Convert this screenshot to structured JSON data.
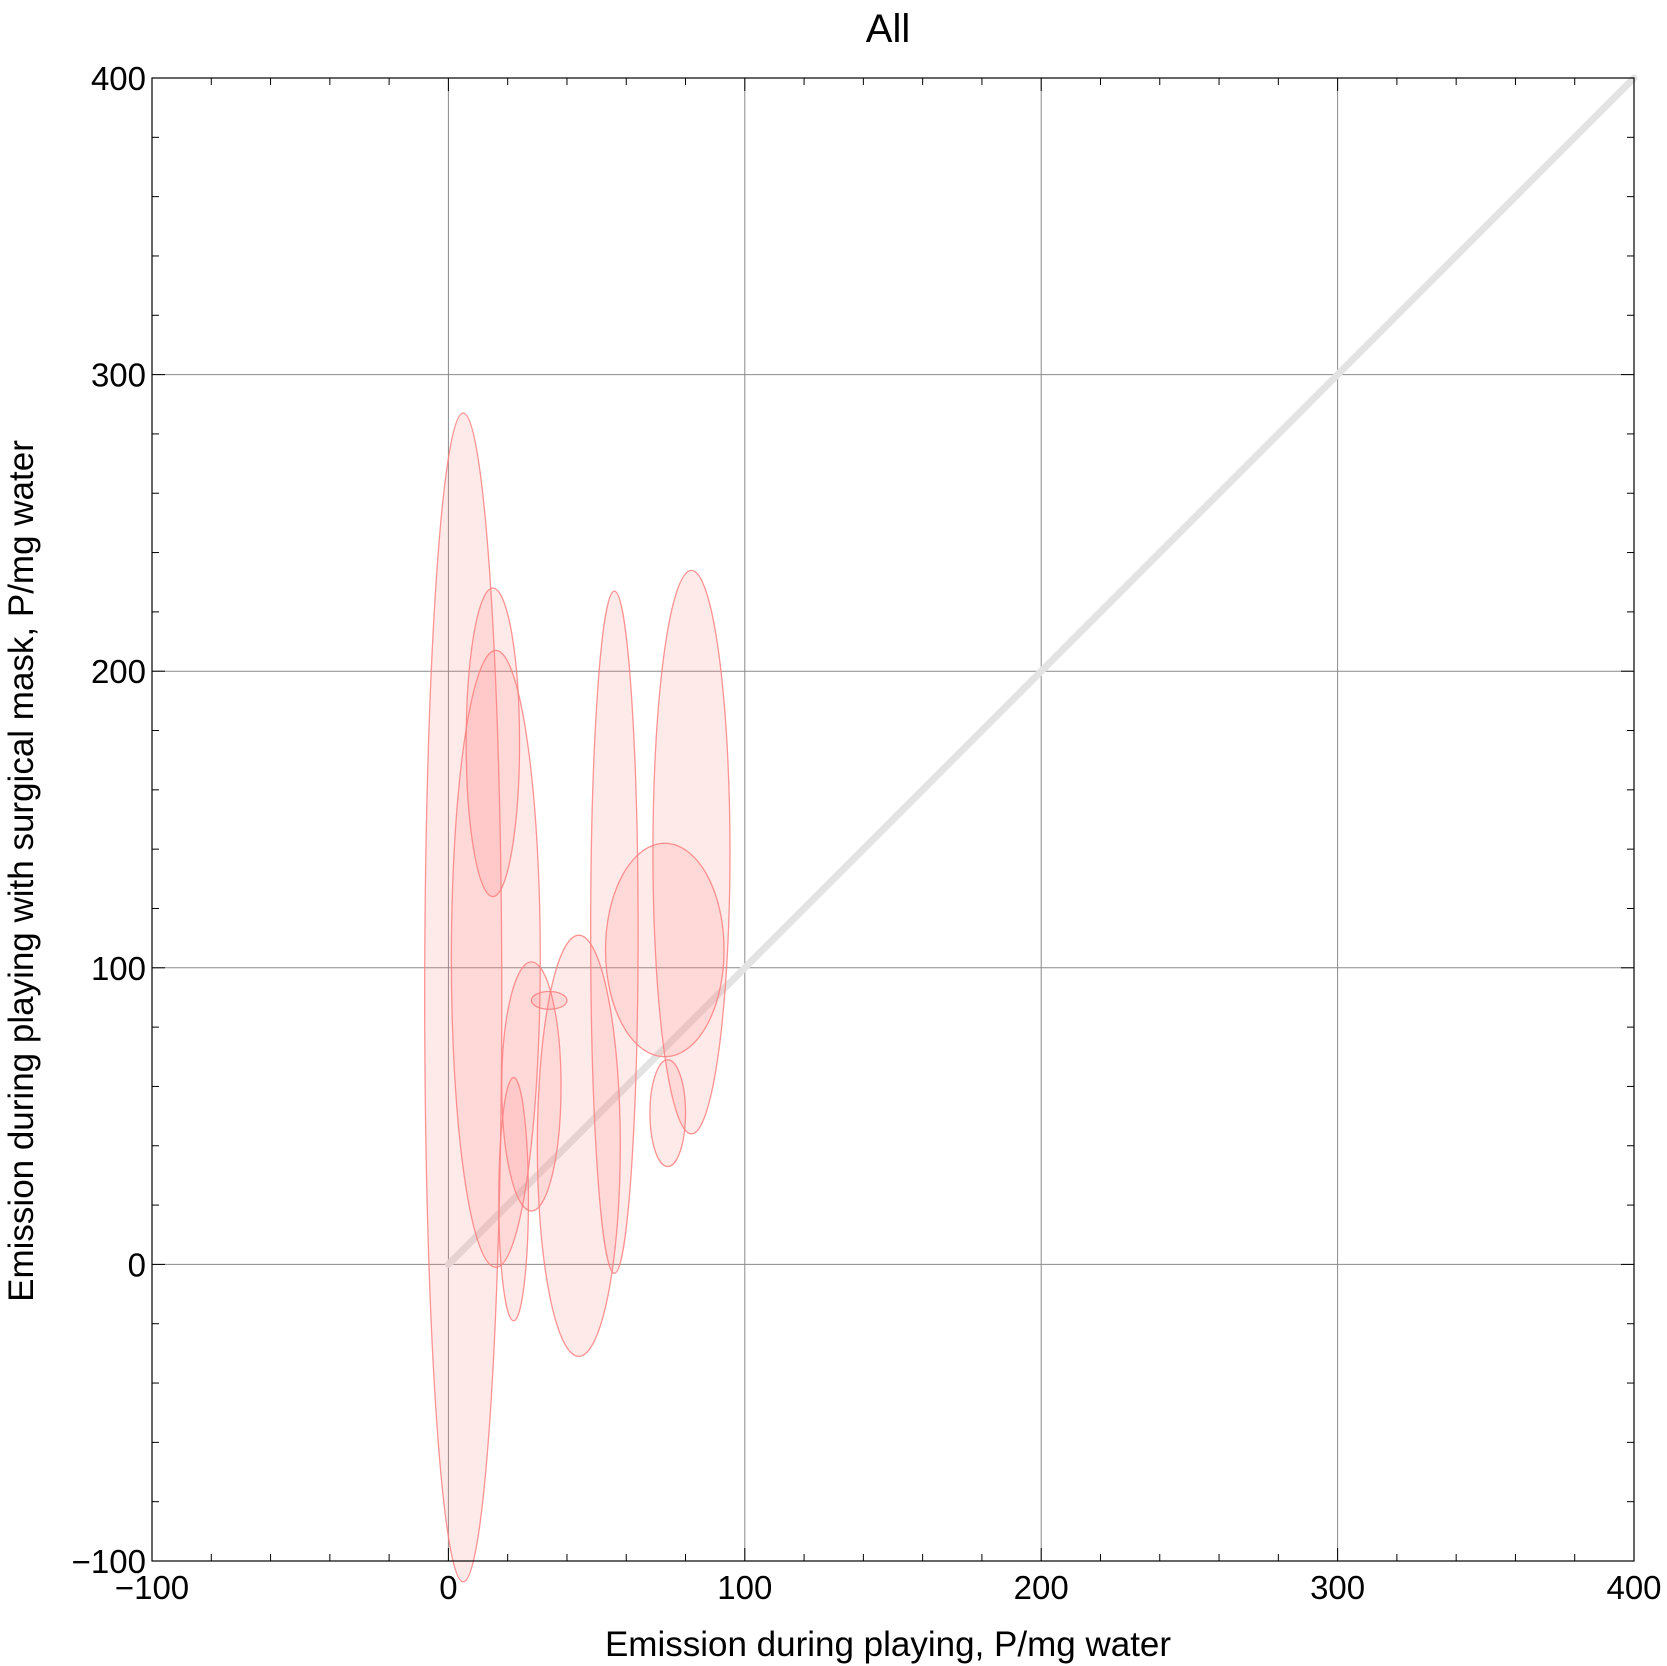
{
  "chart_data": {
    "type": "scatter",
    "title": "All",
    "xlabel": "Emission during playing,   P/mg water",
    "ylabel": "Emission during playing with surgical mask,   P/mg water",
    "xlim": [
      -100,
      400
    ],
    "ylim": [
      -100,
      400
    ],
    "x_ticks": [
      -100,
      0,
      100,
      200,
      300,
      400
    ],
    "y_ticks": [
      -100,
      0,
      100,
      200,
      300,
      400
    ],
    "x_tick_labels": [
      "−100",
      "0",
      "100",
      "200",
      "300",
      "400"
    ],
    "y_tick_labels": [
      "−100",
      "0",
      "100",
      "200",
      "300",
      "400"
    ],
    "minor_step": 20,
    "grid": true,
    "reference_line": {
      "from": [
        0,
        0
      ],
      "to": [
        400,
        400
      ],
      "color": "#e3e3e3"
    },
    "ellipse_color": "#ff8080",
    "ellipses": [
      {
        "cx": 5,
        "cy": 90,
        "rx": 13,
        "ry": 197
      },
      {
        "cx": 15,
        "cy": 176,
        "rx": 9,
        "ry": 52
      },
      {
        "cx": 16,
        "cy": 103,
        "rx": 15,
        "ry": 104
      },
      {
        "cx": 22,
        "cy": 22,
        "rx": 5,
        "ry": 41
      },
      {
        "cx": 28,
        "cy": 60,
        "rx": 10,
        "ry": 42
      },
      {
        "cx": 34,
        "cy": 89,
        "rx": 6,
        "ry": 3
      },
      {
        "cx": 44,
        "cy": 40,
        "rx": 14,
        "ry": 71
      },
      {
        "cx": 56,
        "cy": 112,
        "rx": 8,
        "ry": 115
      },
      {
        "cx": 73,
        "cy": 106,
        "rx": 20,
        "ry": 36
      },
      {
        "cx": 74,
        "cy": 51,
        "rx": 6,
        "ry": 18
      },
      {
        "cx": 82,
        "cy": 139,
        "rx": 13,
        "ry": 95
      }
    ]
  }
}
